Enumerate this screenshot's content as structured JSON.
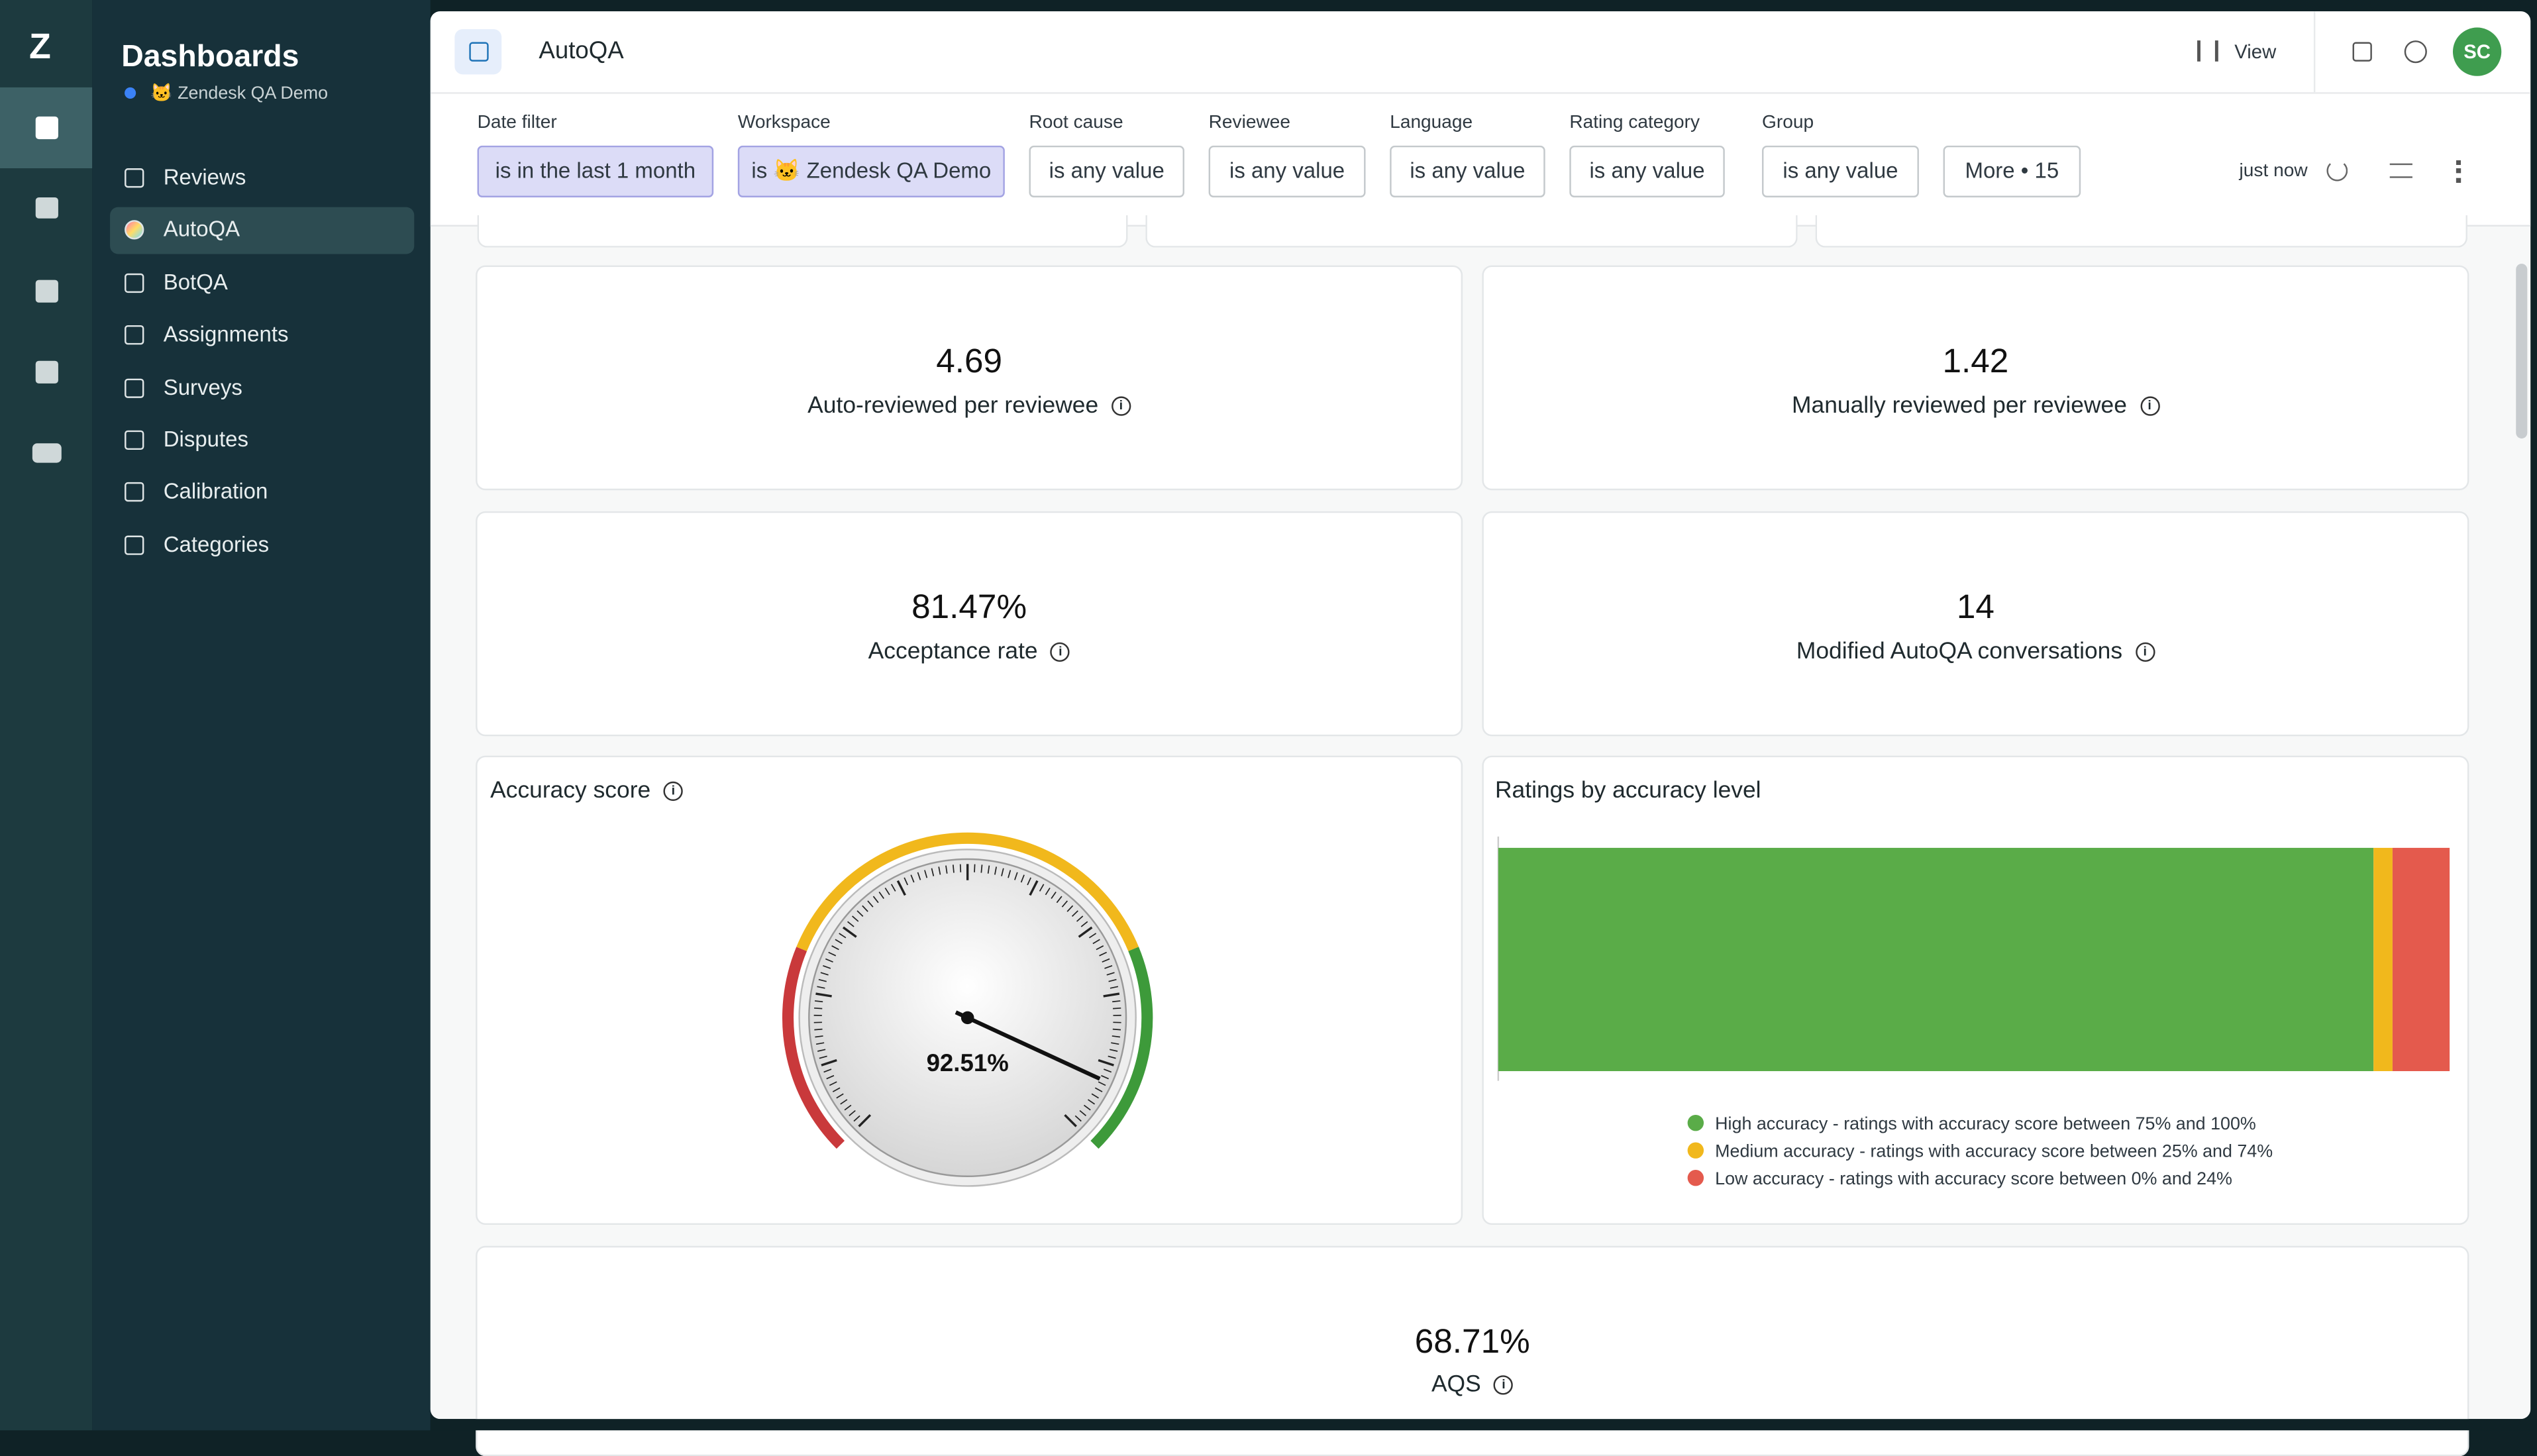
{
  "sidebar": {
    "title": "Dashboards",
    "workspace": "🐱 Zendesk QA Demo",
    "nav": [
      "Reviews",
      "AutoQA",
      "BotQA",
      "Assignments",
      "Surveys",
      "Disputes",
      "Calibration",
      "Categories"
    ],
    "active": 1
  },
  "header": {
    "title": "AutoQA",
    "view": "View",
    "avatar": "SC"
  },
  "filters": [
    {
      "label": "Date filter",
      "value": "is in the last 1 month",
      "active": true
    },
    {
      "label": "Workspace",
      "value": "is 🐱 Zendesk QA Demo",
      "active": true
    },
    {
      "label": "Root cause",
      "value": "is any value",
      "active": false
    },
    {
      "label": "Reviewee",
      "value": "is any value",
      "active": false
    },
    {
      "label": "Language",
      "value": "is any value",
      "active": false
    },
    {
      "label": "Rating category",
      "value": "is any value",
      "active": false
    },
    {
      "label": "Group",
      "value": "is any value",
      "active": false
    }
  ],
  "more": "More • 15",
  "refreshed": "just now",
  "metrics": [
    {
      "value": "4.69",
      "label": "Auto-reviewed per reviewee"
    },
    {
      "value": "1.42",
      "label": "Manually reviewed per reviewee"
    },
    {
      "value": "81.47%",
      "label": "Acceptance rate"
    },
    {
      "value": "14",
      "label": "Modified AutoQA conversations"
    }
  ],
  "gauge_chart": {
    "type": "gauge",
    "title": "Accuracy score",
    "value": 92.51,
    "value_label": "92.51%",
    "range": [
      0,
      100
    ],
    "bands": [
      {
        "to": 25,
        "color": "#c9393b"
      },
      {
        "to": 75,
        "color": "#f1b81c"
      },
      {
        "to": 100,
        "color": "#3d9a3a"
      }
    ]
  },
  "bar_chart": {
    "type": "bar",
    "title": "Ratings by accuracy level",
    "xlim": [
      0,
      100
    ],
    "series": [
      {
        "name": "High accuracy - ratings with accuracy score between 75% and 100%",
        "color": "#5aac48",
        "values": [
          92
        ]
      },
      {
        "name": "Medium accuracy - ratings with accuracy score between 25% and 74%",
        "color": "#f1b81c",
        "values": [
          2
        ]
      },
      {
        "name": "Low accuracy - ratings with accuracy score between 0% and 24%",
        "color": "#e45a4d",
        "values": [
          6
        ]
      }
    ]
  },
  "aqs": {
    "value": "68.71%",
    "label": "AQS"
  }
}
